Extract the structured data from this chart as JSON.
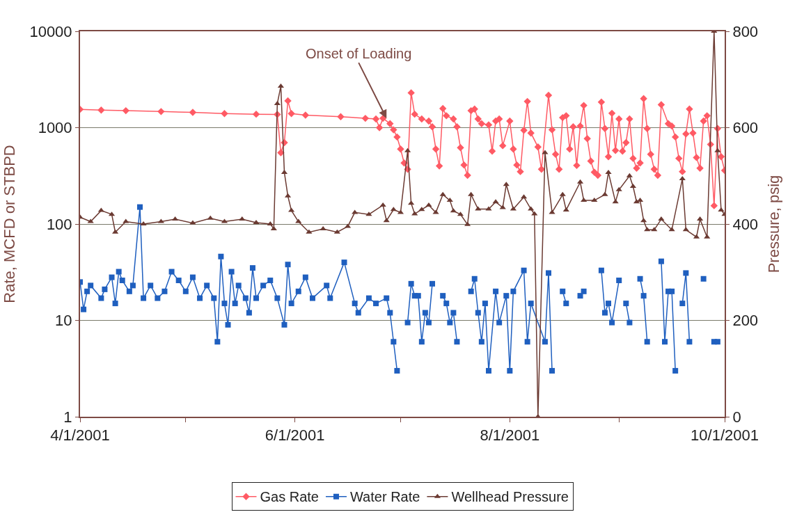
{
  "chart_data": {
    "type": "line",
    "ylabel": "Rate, MCFD or STBPD",
    "y2label": "Pressure, psig",
    "log": "y",
    "grid": "y",
    "legend": "bottom",
    "xlim": [
      "2001-04-01",
      "2001-10-01"
    ],
    "xticks": [
      {
        "value": "2001-04-01",
        "label": "4/1/2001"
      },
      {
        "value": "2001-05-01",
        "label": null
      },
      {
        "value": "2001-06-01",
        "label": "6/1/2001"
      },
      {
        "value": "2001-07-01",
        "label": null
      },
      {
        "value": "2001-08-01",
        "label": "8/1/2001"
      },
      {
        "value": "2001-09-01",
        "label": null
      },
      {
        "value": "2001-10-01",
        "label": "10/1/2001"
      }
    ],
    "ylim": [
      1,
      10000
    ],
    "yticks": [
      1,
      10,
      100,
      1000,
      10000
    ],
    "y2lim": [
      0,
      800
    ],
    "y2ticks": [
      0,
      200,
      400,
      600,
      800
    ],
    "annotations": [
      {
        "text": "Onset of Loading",
        "x": "2001-06-27",
        "y": 1250
      }
    ],
    "series": [
      {
        "name": "Gas Rate",
        "color": "#ff5a64",
        "marker": "diamond",
        "x": [
          "2001-04-01",
          "2001-04-07",
          "2001-04-14",
          "2001-04-24",
          "2001-05-03",
          "2001-05-12",
          "2001-05-21",
          "2001-05-27",
          "2001-05-28",
          "2001-05-29",
          "2001-05-30",
          "2001-05-31",
          "2001-06-04",
          "2001-06-14",
          "2001-06-21",
          "2001-06-24",
          "2001-06-25",
          "2001-06-26",
          "2001-06-28",
          "2001-06-29",
          "2001-06-30",
          "2001-07-01",
          "2001-07-02",
          "2001-07-03",
          "2001-07-04",
          "2001-07-05",
          "2001-07-07",
          "2001-07-09",
          "2001-07-10",
          "2001-07-11",
          "2001-07-12",
          "2001-07-13",
          "2001-07-14",
          "2001-07-16",
          "2001-07-17",
          "2001-07-18",
          "2001-07-19",
          "2001-07-20",
          "2001-07-21",
          "2001-07-22",
          "2001-07-23",
          "2001-07-24",
          "2001-07-26",
          "2001-07-27",
          "2001-07-28",
          "2001-07-29",
          "2001-07-30",
          "2001-08-01",
          "2001-08-02",
          "2001-08-03",
          "2001-08-04",
          "2001-08-05",
          "2001-08-06",
          "2001-08-07",
          "2001-08-09",
          "2001-08-10",
          "2001-08-12",
          "2001-08-13",
          "2001-08-14",
          "2001-08-15",
          "2001-08-16",
          "2001-08-17",
          "2001-08-18",
          "2001-08-19",
          "2001-08-20",
          "2001-08-21",
          "2001-08-22",
          "2001-08-23",
          "2001-08-24",
          "2001-08-25",
          "2001-08-26",
          "2001-08-27",
          "2001-08-28",
          "2001-08-29",
          "2001-08-30",
          "2001-08-31",
          "2001-09-01",
          "2001-09-02",
          "2001-09-03",
          "2001-09-04",
          "2001-09-05",
          "2001-09-06",
          "2001-09-07",
          "2001-09-08",
          "2001-09-09",
          "2001-09-10",
          "2001-09-11",
          "2001-09-12",
          "2001-09-13",
          "2001-09-15",
          "2001-09-16",
          "2001-09-17",
          "2001-09-18",
          "2001-09-19",
          "2001-09-20",
          "2001-09-21",
          "2001-09-22",
          "2001-09-23",
          "2001-09-24",
          "2001-09-25",
          "2001-09-26",
          "2001-09-27",
          "2001-09-28",
          "2001-09-29",
          "2001-09-30",
          "2001-10-01"
        ],
        "values": [
          1550,
          1520,
          1500,
          1470,
          1440,
          1400,
          1380,
          1370,
          550,
          700,
          1900,
          1400,
          1350,
          1300,
          1250,
          1230,
          1000,
          1250,
          1100,
          950,
          800,
          600,
          430,
          370,
          2300,
          1380,
          1230,
          1170,
          1020,
          600,
          400,
          1580,
          1330,
          1230,
          1020,
          620,
          410,
          320,
          1500,
          1560,
          1230,
          1100,
          1070,
          570,
          1170,
          1230,
          650,
          1170,
          600,
          410,
          350,
          940,
          1870,
          880,
          630,
          370,
          2170,
          950,
          530,
          370,
          1270,
          1330,
          600,
          1020,
          405,
          1040,
          1700,
          770,
          450,
          345,
          320,
          1840,
          980,
          500,
          1410,
          580,
          1230,
          570,
          700,
          1230,
          480,
          380,
          430,
          2000,
          980,
          530,
          370,
          320,
          1730,
          1100,
          1040,
          800,
          480,
          350,
          860,
          1560,
          880,
          490,
          380,
          1170,
          1330,
          670,
          155,
          980,
          500,
          360
        ]
      },
      {
        "name": "Water Rate",
        "color": "#1f5fbf",
        "marker": "square",
        "x": [
          "2001-04-01",
          "2001-04-02",
          "2001-04-03",
          "2001-04-04",
          "2001-04-07",
          "2001-04-08",
          "2001-04-10",
          "2001-04-11",
          "2001-04-12",
          "2001-04-13",
          "2001-04-15",
          "2001-04-16",
          "2001-04-18",
          "2001-04-19",
          "2001-04-21",
          "2001-04-23",
          "2001-04-25",
          "2001-04-27",
          "2001-04-29",
          "2001-05-01",
          "2001-05-03",
          "2001-05-05",
          "2001-05-07",
          "2001-05-09",
          "2001-05-10",
          "2001-05-11",
          "2001-05-12",
          "2001-05-13",
          "2001-05-14",
          "2001-05-15",
          "2001-05-16",
          "2001-05-18",
          "2001-05-19",
          "2001-05-20",
          "2001-05-21",
          "2001-05-23",
          "2001-05-25",
          "2001-05-27",
          "2001-05-29",
          "2001-05-30",
          "2001-05-31",
          "2001-06-02",
          "2001-06-04",
          "2001-06-06",
          "2001-06-10",
          "2001-06-11",
          "2001-06-15",
          "2001-06-18",
          "2001-06-19",
          "2001-06-22",
          "2001-06-24",
          "2001-06-27",
          "2001-06-28",
          "2001-06-29",
          "2001-06-30",
          "2001-07-01",
          "2001-07-03",
          "2001-07-04",
          "2001-07-05",
          "2001-07-06",
          "2001-07-07",
          "2001-07-08",
          "2001-07-09",
          "2001-07-10",
          "2001-07-11",
          "2001-07-13",
          "2001-07-14",
          "2001-07-15",
          "2001-07-16",
          "2001-07-17",
          "2001-07-18",
          "2001-07-21",
          "2001-07-22",
          "2001-07-23",
          "2001-07-24",
          "2001-07-25",
          "2001-07-26",
          "2001-07-28",
          "2001-07-29",
          "2001-07-31",
          "2001-08-01",
          "2001-08-02",
          "2001-08-05",
          "2001-08-06",
          "2001-08-07",
          "2001-08-11",
          "2001-08-12",
          "2001-08-13",
          "2001-08-14",
          "2001-08-16",
          "2001-08-17",
          "2001-08-18",
          "2001-08-21",
          "2001-08-22",
          "2001-08-23",
          "2001-08-27",
          "2001-08-28",
          "2001-08-29",
          "2001-08-30",
          "2001-09-01",
          "2001-09-02",
          "2001-09-03",
          "2001-09-04",
          "2001-09-05",
          "2001-09-07",
          "2001-09-08",
          "2001-09-09",
          "2001-09-10",
          "2001-09-13",
          "2001-09-14",
          "2001-09-15",
          "2001-09-16",
          "2001-09-17",
          "2001-09-18",
          "2001-09-19",
          "2001-09-20",
          "2001-09-21",
          "2001-09-22",
          "2001-09-25",
          "2001-09-26",
          "2001-09-28",
          "2001-09-29"
        ],
        "values": [
          25,
          13,
          20,
          23,
          17,
          21,
          28,
          15,
          32,
          26,
          20,
          23,
          150,
          17,
          23,
          17,
          20,
          32,
          26,
          20,
          28,
          17,
          23,
          17,
          6,
          46,
          15,
          9,
          32,
          15,
          23,
          17,
          12,
          35,
          17,
          23,
          26,
          17,
          9,
          38,
          15,
          20,
          28,
          17,
          23,
          17,
          40,
          15,
          12,
          17,
          15,
          17,
          12,
          6,
          3,
          null,
          9.5,
          24,
          18,
          18,
          6,
          12,
          9.5,
          24,
          null,
          18,
          15,
          9.5,
          12,
          6,
          null,
          20,
          27,
          12,
          6,
          15,
          3,
          20,
          9.5,
          18,
          3,
          20,
          33,
          6,
          15,
          6,
          31,
          3,
          null,
          20,
          15,
          null,
          18,
          20,
          null,
          33,
          12,
          15,
          9.5,
          26,
          null,
          15,
          9.5,
          null,
          27,
          18,
          6,
          null,
          41,
          6,
          20,
          20,
          3,
          null,
          15,
          31,
          6,
          null,
          27,
          null,
          6,
          6
        ]
      },
      {
        "name": "Wellhead Pressure",
        "color": "#6b3a32",
        "marker": "triangle",
        "axis": "y2",
        "x": [
          "2001-04-01",
          "2001-04-04",
          "2001-04-07",
          "2001-04-10",
          "2001-04-11",
          "2001-04-14",
          "2001-04-19",
          "2001-04-24",
          "2001-04-28",
          "2001-05-03",
          "2001-05-08",
          "2001-05-12",
          "2001-05-17",
          "2001-05-21",
          "2001-05-25",
          "2001-05-26",
          "2001-05-27",
          "2001-05-28",
          "2001-05-29",
          "2001-05-30",
          "2001-05-31",
          "2001-06-02",
          "2001-06-05",
          "2001-06-09",
          "2001-06-13",
          "2001-06-16",
          "2001-06-18",
          "2001-06-22",
          "2001-06-26",
          "2001-06-27",
          "2001-06-29",
          "2001-07-01",
          "2001-07-03",
          "2001-07-04",
          "2001-07-05",
          "2001-07-07",
          "2001-07-09",
          "2001-07-11",
          "2001-07-13",
          "2001-07-15",
          "2001-07-16",
          "2001-07-18",
          "2001-07-20",
          "2001-07-21",
          "2001-07-23",
          "2001-07-26",
          "2001-07-28",
          "2001-07-30",
          "2001-07-31",
          "2001-08-02",
          "2001-08-05",
          "2001-08-07",
          "2001-08-08",
          "2001-08-09",
          "2001-08-11",
          "2001-08-13",
          "2001-08-16",
          "2001-08-17",
          "2001-08-21",
          "2001-08-22",
          "2001-08-25",
          "2001-08-28",
          "2001-08-29",
          "2001-08-31",
          "2001-09-01",
          "2001-09-04",
          "2001-09-05",
          "2001-09-06",
          "2001-09-07",
          "2001-09-08",
          "2001-09-09",
          "2001-09-11",
          "2001-09-13",
          "2001-09-16",
          "2001-09-19",
          "2001-09-20",
          "2001-09-23",
          "2001-09-24",
          "2001-09-26",
          "2001-09-28",
          "2001-09-29",
          "2001-09-30",
          "2001-10-01"
        ],
        "values": [
          414,
          405,
          428,
          420,
          383,
          405,
          400,
          405,
          410,
          402,
          412,
          405,
          410,
          403,
          400,
          390,
          650,
          686,
          507,
          458,
          428,
          405,
          383,
          390,
          383,
          395,
          424,
          420,
          439,
          407,
          430,
          424,
          552,
          443,
          421,
          430,
          439,
          424,
          461,
          449,
          427,
          420,
          399,
          461,
          431,
          431,
          446,
          434,
          482,
          431,
          456,
          431,
          421,
          0,
          548,
          424,
          461,
          429,
          487,
          449,
          449,
          461,
          507,
          446,
          471,
          500,
          478,
          446,
          449,
          407,
          388,
          388,
          410,
          388,
          494,
          388,
          373,
          410,
          373,
          800,
          552,
          429,
          420
        ]
      }
    ]
  }
}
